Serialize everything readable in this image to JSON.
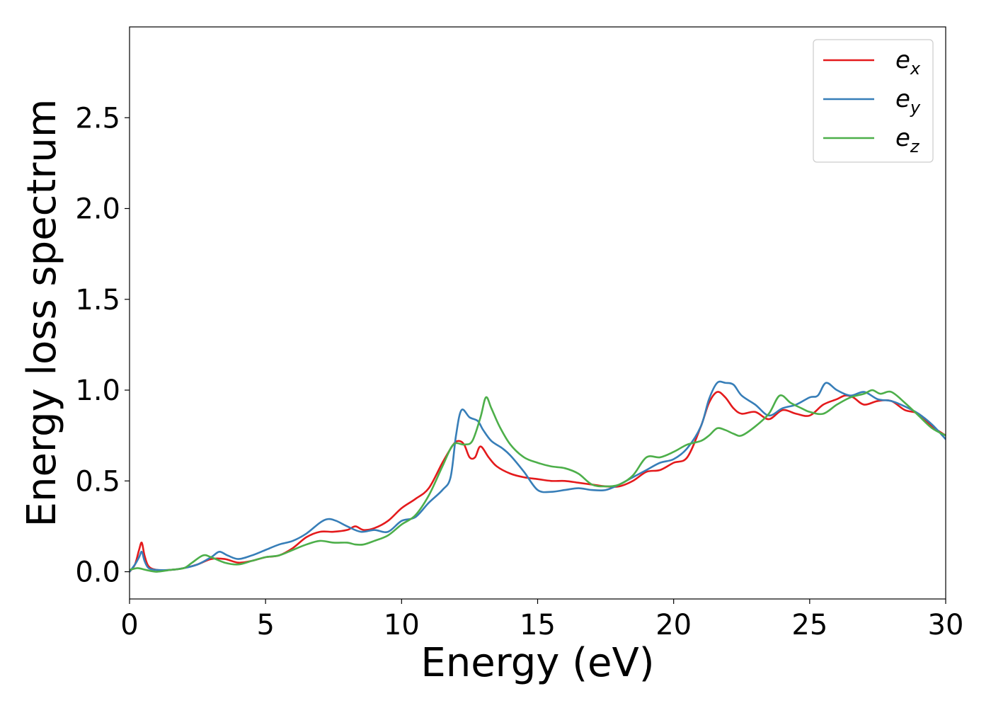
{
  "chart_data": {
    "type": "line",
    "xlabel": "Energy (eV)",
    "ylabel": "Energy loss spectrum",
    "xlim": [
      0,
      30
    ],
    "ylim": [
      -0.15,
      3.0
    ],
    "xticks": [
      0,
      5,
      10,
      15,
      20,
      25,
      30
    ],
    "xtick_labels": [
      "0",
      "5",
      "10",
      "15",
      "20",
      "25",
      "30"
    ],
    "yticks": [
      0.0,
      0.5,
      1.0,
      1.5,
      2.0,
      2.5
    ],
    "ytick_labels": [
      "0.0",
      "0.5",
      "1.0",
      "1.5",
      "2.0",
      "2.5"
    ],
    "grid": false,
    "legend_position": "top-right",
    "series": [
      {
        "name": "e_x",
        "label_base": "e",
        "label_sub": "x",
        "color": "#e41a1c",
        "x": [
          0,
          0.2,
          0.35,
          0.45,
          0.55,
          0.7,
          1.0,
          1.5,
          2.0,
          2.5,
          3.0,
          3.5,
          4.0,
          4.5,
          5.0,
          5.5,
          6.0,
          6.5,
          7.0,
          7.5,
          8.0,
          8.3,
          8.6,
          9.0,
          9.5,
          10.0,
          10.5,
          11.0,
          11.5,
          11.9,
          12.1,
          12.3,
          12.5,
          12.7,
          12.9,
          13.2,
          13.5,
          14.0,
          14.5,
          15.0,
          15.5,
          16.0,
          16.5,
          17.0,
          17.5,
          18.0,
          18.5,
          19.0,
          19.5,
          20.0,
          20.5,
          21.0,
          21.3,
          21.6,
          21.9,
          22.2,
          22.5,
          23.0,
          23.5,
          24.0,
          24.5,
          25.0,
          25.5,
          26.0,
          26.3,
          26.6,
          27.0,
          27.5,
          28.0,
          28.5,
          29.0,
          29.5,
          30.0
        ],
        "y": [
          0.0,
          0.04,
          0.12,
          0.16,
          0.09,
          0.03,
          0.01,
          0.01,
          0.02,
          0.04,
          0.07,
          0.07,
          0.05,
          0.06,
          0.08,
          0.09,
          0.13,
          0.19,
          0.22,
          0.22,
          0.23,
          0.25,
          0.23,
          0.24,
          0.28,
          0.35,
          0.4,
          0.46,
          0.6,
          0.7,
          0.72,
          0.7,
          0.63,
          0.63,
          0.69,
          0.63,
          0.58,
          0.54,
          0.52,
          0.51,
          0.5,
          0.5,
          0.49,
          0.48,
          0.47,
          0.47,
          0.5,
          0.55,
          0.56,
          0.6,
          0.63,
          0.8,
          0.93,
          0.99,
          0.96,
          0.9,
          0.87,
          0.88,
          0.84,
          0.89,
          0.87,
          0.86,
          0.92,
          0.95,
          0.97,
          0.96,
          0.92,
          0.94,
          0.94,
          0.89,
          0.87,
          0.8,
          0.75
        ]
      },
      {
        "name": "e_y",
        "label_base": "e",
        "label_sub": "y",
        "color": "#377eb8",
        "x": [
          0,
          0.2,
          0.35,
          0.45,
          0.55,
          0.7,
          1.0,
          1.5,
          2.0,
          2.5,
          3.0,
          3.3,
          3.6,
          4.0,
          4.5,
          5.0,
          5.5,
          6.0,
          6.5,
          7.0,
          7.3,
          7.6,
          8.0,
          8.5,
          9.0,
          9.5,
          10.0,
          10.5,
          11.0,
          11.5,
          11.8,
          12.0,
          12.2,
          12.5,
          12.8,
          13.0,
          13.3,
          13.7,
          14.0,
          14.5,
          15.0,
          15.5,
          16.0,
          16.5,
          17.0,
          17.5,
          18.0,
          18.5,
          19.0,
          19.5,
          20.0,
          20.5,
          21.0,
          21.3,
          21.6,
          21.9,
          22.2,
          22.5,
          23.0,
          23.5,
          24.0,
          24.5,
          25.0,
          25.3,
          25.6,
          26.0,
          26.5,
          27.0,
          27.5,
          28.0,
          28.5,
          29.0,
          29.5,
          30.0
        ],
        "y": [
          0.0,
          0.04,
          0.08,
          0.11,
          0.06,
          0.02,
          0.01,
          0.01,
          0.02,
          0.04,
          0.08,
          0.11,
          0.09,
          0.07,
          0.09,
          0.12,
          0.15,
          0.17,
          0.21,
          0.27,
          0.29,
          0.28,
          0.25,
          0.22,
          0.23,
          0.22,
          0.28,
          0.3,
          0.38,
          0.45,
          0.52,
          0.75,
          0.89,
          0.85,
          0.83,
          0.78,
          0.72,
          0.68,
          0.64,
          0.55,
          0.45,
          0.44,
          0.45,
          0.46,
          0.45,
          0.45,
          0.48,
          0.52,
          0.56,
          0.6,
          0.62,
          0.68,
          0.8,
          0.95,
          1.04,
          1.04,
          1.03,
          0.97,
          0.92,
          0.86,
          0.9,
          0.92,
          0.96,
          0.97,
          1.04,
          1.0,
          0.97,
          0.99,
          0.95,
          0.94,
          0.91,
          0.87,
          0.81,
          0.73
        ]
      },
      {
        "name": "e_z",
        "label_base": "e",
        "label_sub": "z",
        "color": "#4daf4a",
        "x": [
          0,
          0.3,
          0.6,
          1.0,
          1.5,
          2.0,
          2.3,
          2.7,
          3.0,
          3.5,
          4.0,
          4.5,
          5.0,
          5.5,
          6.0,
          6.5,
          7.0,
          7.5,
          8.0,
          8.3,
          8.6,
          9.0,
          9.5,
          10.0,
          10.5,
          11.0,
          11.5,
          11.9,
          12.3,
          12.6,
          12.9,
          13.1,
          13.3,
          13.6,
          14.0,
          14.5,
          15.0,
          15.5,
          16.0,
          16.5,
          17.0,
          17.5,
          18.0,
          18.5,
          19.0,
          19.5,
          20.0,
          20.5,
          21.0,
          21.3,
          21.6,
          21.9,
          22.2,
          22.5,
          23.0,
          23.5,
          23.9,
          24.3,
          24.7,
          25.0,
          25.5,
          26.0,
          26.5,
          27.0,
          27.3,
          27.6,
          28.0,
          28.5,
          29.0,
          29.5,
          30.0
        ],
        "y": [
          0.01,
          0.02,
          0.01,
          0.0,
          0.01,
          0.02,
          0.05,
          0.09,
          0.08,
          0.05,
          0.04,
          0.06,
          0.08,
          0.09,
          0.12,
          0.15,
          0.17,
          0.16,
          0.16,
          0.15,
          0.15,
          0.17,
          0.2,
          0.26,
          0.31,
          0.42,
          0.58,
          0.7,
          0.7,
          0.72,
          0.85,
          0.96,
          0.9,
          0.8,
          0.7,
          0.63,
          0.6,
          0.58,
          0.57,
          0.54,
          0.48,
          0.47,
          0.48,
          0.53,
          0.63,
          0.63,
          0.66,
          0.7,
          0.72,
          0.75,
          0.79,
          0.78,
          0.76,
          0.75,
          0.8,
          0.87,
          0.97,
          0.93,
          0.9,
          0.88,
          0.87,
          0.92,
          0.96,
          0.98,
          1.0,
          0.98,
          0.99,
          0.93,
          0.86,
          0.79,
          0.75
        ]
      }
    ]
  }
}
